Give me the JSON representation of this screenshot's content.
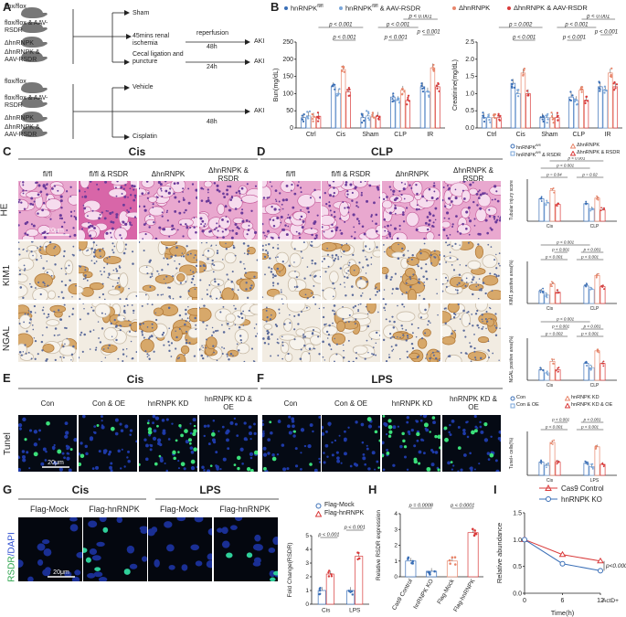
{
  "panel_letters": [
    "A",
    "B",
    "C",
    "D",
    "E",
    "F",
    "G",
    "H",
    "I"
  ],
  "panelA": {
    "groups1": [
      "flox/flox",
      "flox/flox & AAV-RSDR",
      "ΔhnRNPK",
      "ΔhnRNPK & AAV-RSDR"
    ],
    "groups2": [
      "flox/flox",
      "flox/flox & AAV-RSDR",
      "ΔhnRNPK",
      "ΔhnRNPK & AAV-RSDR"
    ],
    "sham": "Sham",
    "ischemia": "45mins renal ischemia",
    "reperfusion": "reperfusion",
    "t48a": "48h",
    "clp": "Cecal ligation and puncture",
    "t24": "24h",
    "aki1": "AKI",
    "aki2": "AKI",
    "aki3": "AKI",
    "vehicle": "Vehicle",
    "t48b": "48h",
    "cisplatin": "Cisplatin"
  },
  "panelB": {
    "legend": [
      "hnRNPK",
      "hnRNPK",
      "& AAV-RSDR",
      "ΔhnRNPK",
      "ΔhnRNPK & AAV-RSDR"
    ],
    "legend_sup": "fl/fl",
    "colors": {
      "flfl": "#3a6fb7",
      "flfl_rsdr": "#7aa6d9",
      "ko": "#e8866b",
      "ko_rsdr": "#d93a3a"
    }
  },
  "chart_data": [
    {
      "type": "bar",
      "ylabel": "Bun(mg/dL)",
      "ylim": [
        0,
        250
      ],
      "yticks": [
        "0",
        "50",
        "100",
        "150",
        "200",
        "250"
      ],
      "categories": [
        "Ctrl",
        "Cis",
        "Sham",
        "CLP",
        "IR"
      ],
      "series": [
        {
          "name": "hnRNPK fl/fl",
          "values": [
            30,
            120,
            30,
            90,
            120
          ]
        },
        {
          "name": "hnRNPK fl/fl & AAV-RSDR",
          "values": [
            35,
            100,
            35,
            80,
            105
          ]
        },
        {
          "name": "ΔhnRNPK",
          "values": [
            32,
            170,
            32,
            110,
            175
          ]
        },
        {
          "name": "ΔhnRNPK & AAV-RSDR",
          "values": [
            34,
            105,
            34,
            80,
            120
          ]
        }
      ],
      "pvalues": [
        "p < 0.001",
        "p < 0.001",
        "p < 0.001",
        "p < 0.001",
        "p < 0.001",
        "p < 0.001"
      ]
    },
    {
      "type": "bar",
      "ylabel": "Creatinine(mg/dL)",
      "ylim": [
        0,
        2.5
      ],
      "yticks": [
        "0.0",
        "0.5",
        "1.0",
        "1.5",
        "2.0",
        "2.5"
      ],
      "categories": [
        "Ctrl",
        "Cis",
        "Sham",
        "CLP",
        "IR"
      ],
      "series": [
        {
          "name": "hnRNPK fl/fl",
          "values": [
            0.3,
            1.3,
            0.3,
            0.9,
            1.2
          ]
        },
        {
          "name": "hnRNPK fl/fl & AAV-RSDR",
          "values": [
            0.3,
            1.0,
            0.3,
            0.8,
            1.1
          ]
        },
        {
          "name": "ΔhnRNPK",
          "values": [
            0.3,
            1.6,
            0.3,
            1.1,
            1.6
          ]
        },
        {
          "name": "ΔhnRNPK & AAV-RSDR",
          "values": [
            0.3,
            1.0,
            0.3,
            0.8,
            1.2
          ]
        }
      ],
      "pvalues": [
        "p = 0.002",
        "p < 0.001",
        "p < 0.001",
        "p < 0.001",
        "p < 0.001",
        "p < 0.001"
      ]
    },
    {
      "type": "bar",
      "ylabel": "Tubular injury score",
      "categories": [
        "Cis",
        "CLP"
      ],
      "ylim": [
        0,
        6
      ],
      "series": [
        {
          "name": "hnRNPK fl/fl",
          "values": [
            3.2,
            2.5
          ]
        },
        {
          "name": "hnRNPK fl/fl & RSDR",
          "values": [
            2.6,
            1.8
          ]
        },
        {
          "name": "ΔhnRNPK",
          "values": [
            4.4,
            3.3
          ]
        },
        {
          "name": "ΔhnRNPK & RSDR",
          "values": [
            2.4,
            1.6
          ]
        }
      ],
      "pvalues": [
        "p = 0.04",
        "p < 0.001",
        "p = 0.02",
        "p < 0.001",
        "p < 0.001"
      ]
    },
    {
      "type": "bar",
      "ylabel": "KIM1 positive area(%)",
      "categories": [
        "Cis",
        "CLP"
      ],
      "ylim": [
        0,
        60
      ],
      "series": [
        {
          "name": "hnRNPK fl/fl",
          "values": [
            18,
            25
          ]
        },
        {
          "name": "hnRNPK fl/fl & RSDR",
          "values": [
            12,
            20
          ]
        },
        {
          "name": "ΔhnRNPK",
          "values": [
            28,
            40
          ]
        },
        {
          "name": "ΔhnRNPK & RSDR",
          "values": [
            16,
            24
          ]
        }
      ],
      "pvalues": [
        "p < 0.001",
        "p < 0.001",
        "p < 0.001",
        "p < 0.001",
        "p < 0.001",
        "p < 0.001"
      ]
    },
    {
      "type": "bar",
      "ylabel": "NGAL positive area(%)",
      "categories": [
        "Cis",
        "CLP"
      ],
      "ylim": [
        0,
        40
      ],
      "series": [
        {
          "name": "hnRNPK fl/fl",
          "values": [
            10,
            16
          ]
        },
        {
          "name": "hnRNPK fl/fl & RSDR",
          "values": [
            7,
            12
          ]
        },
        {
          "name": "ΔhnRNPK",
          "values": [
            18,
            28
          ]
        },
        {
          "name": "ΔhnRNPK & RSDR",
          "values": [
            10,
            16
          ]
        }
      ],
      "pvalues": [
        "p = 0.002",
        "p < 0.001",
        "p < 0.001",
        "p < 0.001",
        "p < 0.001",
        "p < 0.001"
      ]
    },
    {
      "type": "bar",
      "ylabel": "Tunel+ cells(%)",
      "categories": [
        "Cis",
        "LPS"
      ],
      "ylim": [
        0,
        40
      ],
      "series": [
        {
          "name": "Con",
          "values": [
            12,
            11
          ]
        },
        {
          "name": "Con & OE",
          "values": [
            9,
            8
          ]
        },
        {
          "name": "hnRNPK KD",
          "values": [
            30,
            26
          ]
        },
        {
          "name": "hnRNPK KD & OE",
          "values": [
            12,
            10
          ]
        }
      ],
      "pvalues": [
        "p < 0.001",
        "p < 0.001",
        "p < 0.001",
        "p < 0.001"
      ]
    },
    {
      "type": "bar",
      "ylabel": "Fold Change(RSDR)",
      "categories": [
        "Cis",
        "LPS"
      ],
      "ylim": [
        0,
        5
      ],
      "yticks": [
        "0",
        "1",
        "2",
        "3",
        "4",
        "5"
      ],
      "series": [
        {
          "name": "Flag-Mock",
          "values": [
            1.0,
            1.0
          ]
        },
        {
          "name": "Flag-hnRNPK",
          "values": [
            2.2,
            3.5
          ]
        }
      ],
      "pvalues": [
        "p < 0.001",
        "p < 0.001"
      ]
    },
    {
      "type": "bar",
      "ylabel": "Relative RSDR expression",
      "ylim": [
        0,
        4
      ],
      "yticks": [
        "0",
        "1",
        "2",
        "3",
        "4"
      ],
      "categories": [
        "Cas9 Control",
        "hnRNPK KO",
        "Flag-Mock",
        "Flag-hnRNPK"
      ],
      "values": [
        1.0,
        0.35,
        1.0,
        2.8
      ],
      "pvalues": [
        "p = 0.0008",
        "p < 0.0001"
      ]
    },
    {
      "type": "line",
      "ylabel": "Relative abundance",
      "xlabel": "Time(h)",
      "xsuffix": "ActD+",
      "x": [
        0,
        6,
        12
      ],
      "xticks": [
        "0",
        "6",
        "12"
      ],
      "yticks": [
        "0.0",
        "0.5",
        "1.0",
        "1.5"
      ],
      "ylim": [
        0,
        1.5
      ],
      "series": [
        {
          "name": "Cas9 Control",
          "values": [
            1.0,
            0.72,
            0.6
          ]
        },
        {
          "name": "hnRNPK KO",
          "values": [
            1.0,
            0.55,
            0.42
          ]
        }
      ],
      "pvalue": "p<0.0001"
    }
  ],
  "panelC": {
    "title": "Cis",
    "cols": [
      "fl/fl",
      "fl/fl & RSDR",
      "ΔhnRNPK",
      "ΔhnRNPK & RSDR"
    ],
    "rows": [
      "HE",
      "KIM1",
      "NGAL"
    ],
    "scale": "20μm"
  },
  "panelD": {
    "title": "CLP",
    "cols": [
      "fl/fl",
      "fl/fl & RSDR",
      "ΔhnRNPK",
      "ΔhnRNPK & RSDR"
    ],
    "legend": [
      "hnRNPK",
      "hnRNPK",
      "& RSDR",
      "ΔhnRNPK",
      "ΔhnRNPK & RSDR"
    ],
    "legend_sup": "fl/fl"
  },
  "panelE": {
    "title": "Cis",
    "cols": [
      "Con",
      "Con & OE",
      "hnRNPK KD",
      "hnRNPK KD & OE"
    ],
    "row": "Tunel",
    "scale": "20μm"
  },
  "panelF": {
    "title": "LPS",
    "cols": [
      "Con",
      "Con & OE",
      "hnRNPK KD",
      "hnRNPK KD & OE"
    ]
  },
  "panelEF_legend": [
    "Con",
    "Con & OE",
    "hnRNPK KD",
    "hnRNPK KD & OE"
  ],
  "panelG": {
    "titles": [
      "Cis",
      "LPS"
    ],
    "cols": [
      "Flag-Mock",
      "Flag-hnRNPK",
      "Flag-Mock",
      "Flag-hnRNPK"
    ],
    "row_a": "RSDR",
    "row_b": "/DAPI",
    "scale": "20μm",
    "legend": [
      "Flag-Mock",
      "Flag-hnRNPK"
    ]
  },
  "panelI": {
    "legend": [
      "Cas9 Control",
      "hnRNPK KO"
    ]
  }
}
